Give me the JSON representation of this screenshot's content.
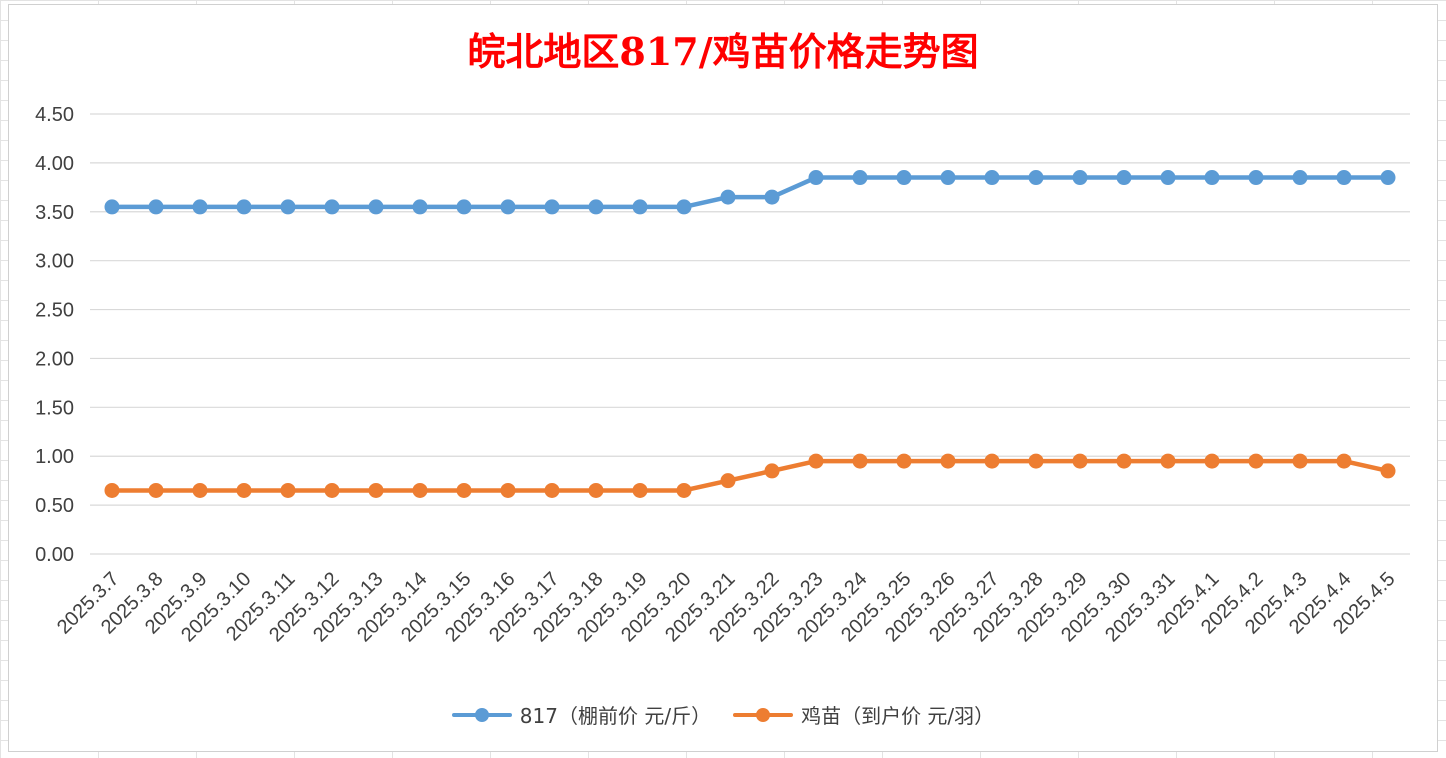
{
  "chart_data": {
    "type": "line",
    "title": "皖北地区817/鸡苗价格走势图",
    "xlabel": "",
    "ylabel": "",
    "ylim": [
      0,
      4.5
    ],
    "yticks": [
      "0.00",
      "0.50",
      "1.00",
      "1.50",
      "2.00",
      "2.50",
      "3.00",
      "3.50",
      "4.00",
      "4.50"
    ],
    "grid": true,
    "legend_position": "bottom",
    "categories": [
      "2025.3.7",
      "2025.3.8",
      "2025.3.9",
      "2025.3.10",
      "2025.3.11",
      "2025.3.12",
      "2025.3.13",
      "2025.3.14",
      "2025.3.15",
      "2025.3.16",
      "2025.3.17",
      "2025.3.18",
      "2025.3.19",
      "2025.3.20",
      "2025.3.21",
      "2025.3.22",
      "2025.3.23",
      "2025.3.24",
      "2025.3.25",
      "2025.3.26",
      "2025.3.27",
      "2025.3.28",
      "2025.3.29",
      "2025.3.30",
      "2025.3.31",
      "2025.4.1",
      "2025.4.2",
      "2025.4.3",
      "2025.4.4",
      "2025.4.5"
    ],
    "series": [
      {
        "name": "817（棚前价 元/斤）",
        "color": "#5b9bd5",
        "values": [
          3.55,
          3.55,
          3.55,
          3.55,
          3.55,
          3.55,
          3.55,
          3.55,
          3.55,
          3.55,
          3.55,
          3.55,
          3.55,
          3.55,
          3.65,
          3.65,
          3.85,
          3.85,
          3.85,
          3.85,
          3.85,
          3.85,
          3.85,
          3.85,
          3.85,
          3.85,
          3.85,
          3.85,
          3.85,
          3.85
        ]
      },
      {
        "name": "鸡苗（到户价 元/羽）",
        "color": "#ed7d31",
        "values": [
          0.65,
          0.65,
          0.65,
          0.65,
          0.65,
          0.65,
          0.65,
          0.65,
          0.65,
          0.65,
          0.65,
          0.65,
          0.65,
          0.65,
          0.75,
          0.85,
          0.95,
          0.95,
          0.95,
          0.95,
          0.95,
          0.95,
          0.95,
          0.95,
          0.95,
          0.95,
          0.95,
          0.95,
          0.95,
          0.85
        ]
      }
    ]
  }
}
